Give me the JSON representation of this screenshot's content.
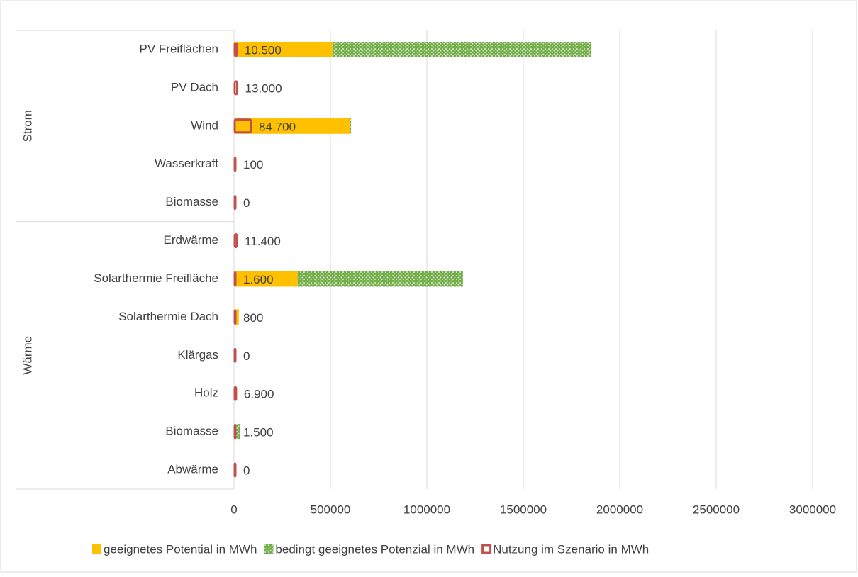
{
  "chart_data": {
    "type": "bar",
    "orientation": "horizontal",
    "categories": [
      "PV Freiflächen",
      "PV Dach",
      "Wind",
      "Wasserkraft",
      "Biomasse",
      "Erdwärme",
      "Solarthermie Freifläche",
      "Solarthermie Dach",
      "Klärgas",
      "Holz",
      "Biomasse",
      "Abwärme"
    ],
    "groups": [
      {
        "label": "Strom",
        "size": 5
      },
      {
        "label": "Wärme",
        "size": 7
      }
    ],
    "series": [
      {
        "name": "geeignetes Potential in MWh",
        "color": "#FFC000",
        "stack": true,
        "values": [
          510000,
          0,
          600000,
          0,
          0,
          0,
          330000,
          25000,
          0,
          0,
          0,
          0
        ]
      },
      {
        "name": "bedingt geeignetes Potenzial in MWh",
        "color": "#70AD47",
        "stack": true,
        "pattern": "dotted",
        "values": [
          1340000,
          0,
          7000,
          0,
          0,
          0,
          857000,
          0,
          0,
          0,
          30000,
          0
        ]
      },
      {
        "name": "Nutzung im Szenario in MWh",
        "color": "#C0504D",
        "stack": false,
        "outline": true,
        "values": [
          10500,
          13000,
          84700,
          100,
          0,
          11400,
          1600,
          800,
          0,
          6900,
          1500,
          0
        ],
        "value_labels": [
          "10.500",
          "13.000",
          "84.700",
          "100",
          "0",
          "11.400",
          "1.600",
          "800",
          "0",
          "6.900",
          "1.500",
          "0"
        ]
      }
    ],
    "xlim": [
      0,
      3000000
    ],
    "xticks": [
      0,
      500000,
      1000000,
      1500000,
      2000000,
      2500000,
      3000000
    ],
    "grid": true,
    "legend": "bottom"
  }
}
